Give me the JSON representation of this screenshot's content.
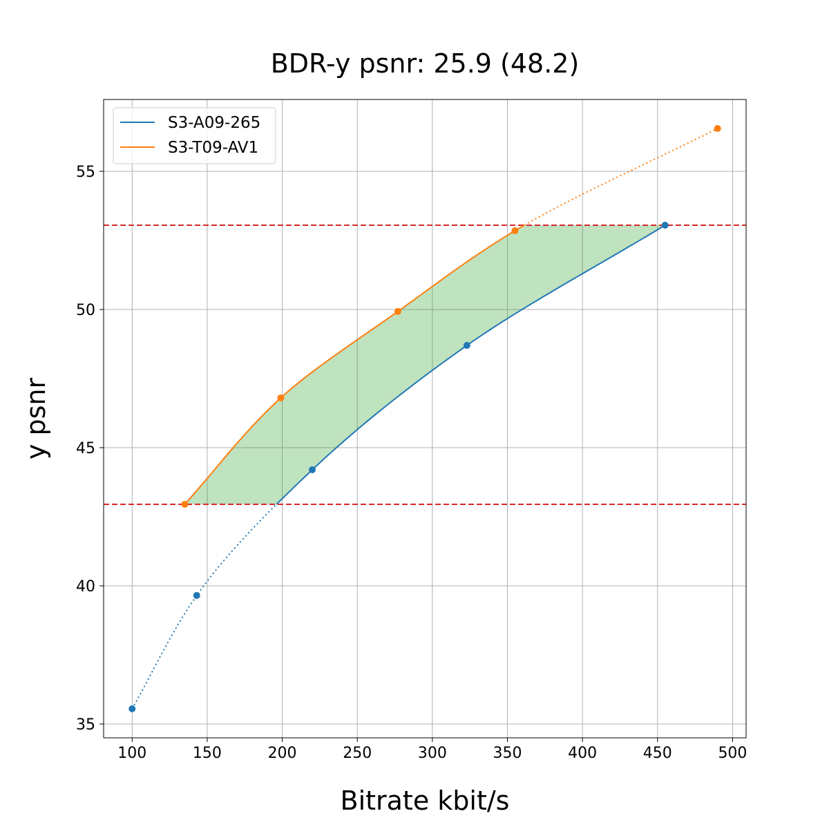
{
  "chart_data": {
    "type": "line",
    "title": "BDR-y psnr: 25.9 (48.2)",
    "xlabel": "Bitrate kbit/s",
    "ylabel": "y psnr",
    "xlim": [
      81,
      509
    ],
    "ylim": [
      34.5,
      57.6
    ],
    "xticks": [
      100,
      150,
      200,
      250,
      300,
      350,
      400,
      450,
      500
    ],
    "yticks": [
      35,
      40,
      45,
      50,
      55
    ],
    "grid": true,
    "legend_position": "top-left",
    "reference_lines": [
      {
        "axis": "y",
        "value": 42.95,
        "style": "dashed",
        "color": "#d62728"
      },
      {
        "axis": "y",
        "value": 53.05,
        "style": "dashed",
        "color": "#d62728"
      }
    ],
    "fill_between": {
      "y_min": 42.95,
      "y_max": 53.05,
      "color": "#2ca02c",
      "opacity": 0.3
    },
    "series": [
      {
        "name": "S3-A09-265",
        "color": "#1f77b4",
        "points": [
          {
            "x": 100,
            "y": 35.55
          },
          {
            "x": 143,
            "y": 39.65
          },
          {
            "x": 220,
            "y": 44.2
          },
          {
            "x": 323,
            "y": 48.7
          },
          {
            "x": 455,
            "y": 53.05
          }
        ]
      },
      {
        "name": "S3-T09-AV1",
        "color": "#ff7f0e",
        "points": [
          {
            "x": 135,
            "y": 42.95
          },
          {
            "x": 199,
            "y": 46.8
          },
          {
            "x": 277,
            "y": 49.93
          },
          {
            "x": 355,
            "y": 52.85
          },
          {
            "x": 490,
            "y": 56.55
          }
        ]
      }
    ]
  }
}
